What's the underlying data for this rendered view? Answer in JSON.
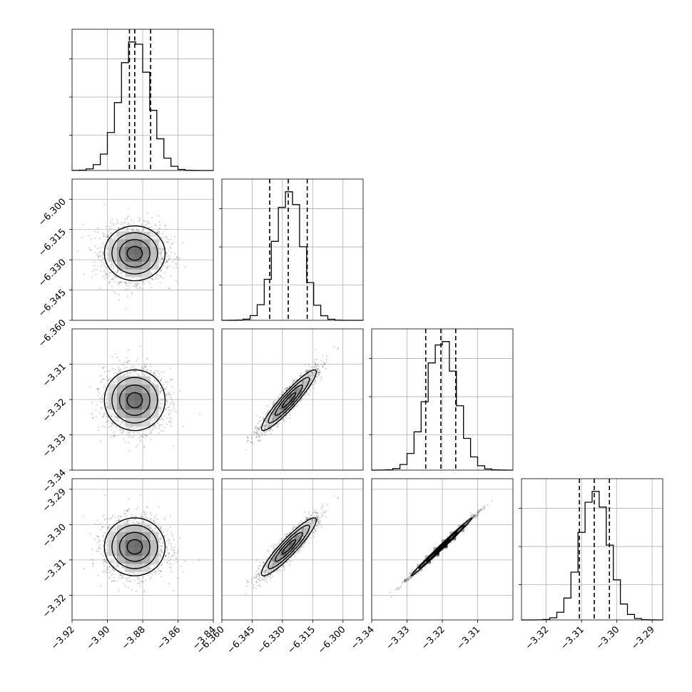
{
  "figure": {
    "background": "#ffffff",
    "grid": true,
    "grid_color": "#b0b0b0"
  },
  "chart_data": {
    "type": "corner",
    "parameters": [
      {
        "name": "",
        "range": [
          -3.92,
          -3.84
        ],
        "ticks": [
          "−3.92",
          "−3.90",
          "−3.88",
          "−3.86",
          "−3.84"
        ],
        "mean": -3.8845,
        "std": 0.0086,
        "quantiles": [
          -3.8875,
          -3.8845,
          -3.8755
        ]
      },
      {
        "name": "",
        "range": [
          -6.36,
          -6.29
        ],
        "ticks": [
          "−6.360",
          "−6.345",
          "−6.330",
          "−6.315",
          "−6.300"
        ],
        "mean": -6.3268,
        "std": 0.0068,
        "quantiles": [
          -6.3363,
          -6.3271,
          -6.3177
        ]
      },
      {
        "name": "",
        "range": [
          -3.34,
          -3.3
        ],
        "ticks": [
          "−3.34",
          "−3.33",
          "−3.32",
          "−3.31"
        ],
        "mean": -3.3202,
        "std": 0.0043,
        "quantiles": [
          -3.3247,
          -3.3204,
          -3.3162
        ]
      },
      {
        "name": "",
        "range": [
          -3.327,
          -3.287
        ],
        "ticks": [
          "−3.32",
          "−3.31",
          "−3.30",
          "−3.29"
        ],
        "mean": -3.3063,
        "std": 0.0041,
        "quantiles": [
          -3.3106,
          -3.3064,
          -3.3021
        ]
      }
    ],
    "panels": [
      {
        "row": 1,
        "col": 0,
        "type": "2d-hist",
        "correlation": 0.0
      },
      {
        "row": 2,
        "col": 0,
        "type": "2d-hist",
        "correlation": 0.0
      },
      {
        "row": 2,
        "col": 1,
        "type": "2d-hist",
        "correlation": 0.93
      },
      {
        "row": 3,
        "col": 0,
        "type": "2d-hist",
        "correlation": 0.0
      },
      {
        "row": 3,
        "col": 1,
        "type": "2d-hist",
        "correlation": 0.92
      },
      {
        "row": 3,
        "col": 2,
        "type": "2d-hist",
        "correlation": 0.995
      }
    ],
    "histogram_bins": 20,
    "quantile_line_style": "dashed",
    "contour_levels": 3
  }
}
